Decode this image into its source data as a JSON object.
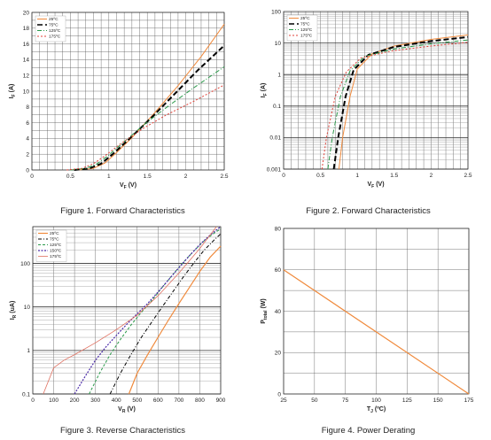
{
  "chart_data": [
    {
      "type": "line",
      "caption": "Figure 1. Forward Characteristics",
      "xlabel": "VF (V)",
      "xlabel_main": "V",
      "xlabel_sub": "F",
      "xlabel_unit": "(V)",
      "ylabel": "IF (A)",
      "ylabel_main": "I",
      "ylabel_sub": "F",
      "ylabel_unit": "(A)",
      "xscale": "linear",
      "yscale": "linear",
      "xlim": [
        0,
        2.5
      ],
      "ylim": [
        0,
        20
      ],
      "xticks": [
        0,
        0.5,
        1,
        1.5,
        2,
        2.5
      ],
      "xtick_labels": [
        "0",
        "0.5",
        "1",
        "1.5",
        "2",
        "2.5"
      ],
      "yticks": [
        0,
        2,
        4,
        6,
        8,
        10,
        12,
        14,
        16,
        18,
        20
      ],
      "ytick_labels": [
        "0",
        "2",
        "4",
        "6",
        "8",
        "10",
        "12",
        "14",
        "16",
        "18",
        "20"
      ],
      "grid": {
        "x_step": 0.1,
        "y_step": 1
      },
      "legend_position": "top-left",
      "series": [
        {
          "name": "25ºC",
          "color": "#f08a3c",
          "dash": "",
          "width": 1,
          "x": [
            0.6,
            0.8,
            0.95,
            1.1,
            1.3,
            1.6,
            1.9,
            2.2,
            2.5
          ],
          "y": [
            0,
            0.2,
            0.9,
            2.2,
            4.1,
            7.3,
            10.7,
            14.4,
            18.5
          ]
        },
        {
          "name": "75ºC",
          "color": "#000000",
          "dash": "6,3",
          "width": 2,
          "x": [
            0.55,
            0.75,
            0.9,
            1.05,
            1.25,
            1.55,
            1.85,
            2.15,
            2.5
          ],
          "y": [
            0,
            0.2,
            0.8,
            2.0,
            3.8,
            6.6,
            9.6,
            12.6,
            15.8
          ]
        },
        {
          "name": "125ºC",
          "color": "#2a9a4a",
          "dash": "5,2,1,2",
          "width": 1,
          "x": [
            0.5,
            0.7,
            0.85,
            1.0,
            1.2,
            1.5,
            1.8,
            2.1,
            2.5
          ],
          "y": [
            0,
            0.2,
            0.8,
            1.9,
            3.6,
            6.1,
            8.3,
            10.4,
            13.1
          ]
        },
        {
          "name": "175ºC",
          "color": "#e0433a",
          "dash": "2,2",
          "width": 1,
          "x": [
            0.45,
            0.65,
            0.8,
            0.95,
            1.15,
            1.45,
            1.75,
            2.1,
            2.5
          ],
          "y": [
            0,
            0.2,
            0.8,
            1.8,
            3.3,
            5.3,
            7.0,
            8.7,
            10.8
          ]
        }
      ]
    },
    {
      "type": "line",
      "caption": "Figure 2. Forward Characteristics",
      "xlabel": "VF (V)",
      "xlabel_main": "V",
      "xlabel_sub": "F",
      "xlabel_unit": "(V)",
      "ylabel": "IF (A)",
      "ylabel_main": "I",
      "ylabel_sub": "F",
      "ylabel_unit": "(A)",
      "xscale": "linear",
      "yscale": "log",
      "xlim": [
        0,
        2.5
      ],
      "ylim": [
        0.001,
        100
      ],
      "xticks": [
        0,
        0.5,
        1,
        1.5,
        2,
        2.5
      ],
      "xtick_labels": [
        "0",
        "0.5",
        "1",
        "1.5",
        "2",
        "2.5"
      ],
      "yticks": [
        0.001,
        0.01,
        0.1,
        1,
        10,
        100
      ],
      "ytick_labels": [
        "0.001",
        "0.01",
        "0.1",
        "1",
        "10",
        "100"
      ],
      "grid": {
        "x_step": 0.1,
        "y_minor": true
      },
      "legend_position": "top-left",
      "series": [
        {
          "name": "25ºC",
          "color": "#f08a3c",
          "dash": "",
          "width": 1,
          "x": [
            0.75,
            0.8,
            0.9,
            1.0,
            1.2,
            1.5,
            2.0,
            2.5
          ],
          "y": [
            0.001,
            0.01,
            0.2,
            1.5,
            4.5,
            8,
            13,
            18
          ]
        },
        {
          "name": "75ºC",
          "color": "#000000",
          "dash": "6,3",
          "width": 2,
          "x": [
            0.68,
            0.74,
            0.84,
            0.95,
            1.15,
            1.5,
            2.0,
            2.5
          ],
          "y": [
            0.001,
            0.01,
            0.2,
            1.4,
            4.2,
            7.5,
            11.5,
            15.5
          ]
        },
        {
          "name": "125ºC",
          "color": "#2a9a4a",
          "dash": "5,2,1,2",
          "width": 1,
          "x": [
            0.6,
            0.66,
            0.77,
            0.9,
            1.1,
            1.5,
            2.0,
            2.5
          ],
          "y": [
            0.001,
            0.01,
            0.2,
            1.3,
            3.8,
            6.5,
            9.5,
            12.5
          ]
        },
        {
          "name": "175ºC",
          "color": "#e0433a",
          "dash": "2,2",
          "width": 1,
          "x": [
            0.52,
            0.58,
            0.7,
            0.85,
            1.05,
            1.45,
            2.0,
            2.5
          ],
          "y": [
            0.001,
            0.01,
            0.2,
            1.2,
            3.4,
            5.5,
            8.0,
            10.5
          ]
        }
      ]
    },
    {
      "type": "line",
      "caption": "Figure 3. Reverse Characteristics",
      "xlabel": "VR (V)",
      "xlabel_main": "V",
      "xlabel_sub": "R",
      "xlabel_unit": "(V)",
      "ylabel": "IR (uA)",
      "ylabel_main": "I",
      "ylabel_sub": "R",
      "ylabel_unit": "(uA)",
      "xscale": "linear",
      "yscale": "log",
      "xlim": [
        0,
        900
      ],
      "ylim": [
        0.1,
        700
      ],
      "xticks": [
        0,
        100,
        200,
        300,
        400,
        500,
        600,
        700,
        800,
        900
      ],
      "xtick_labels": [
        "0",
        "100",
        "200",
        "300",
        "400",
        "500",
        "600",
        "700",
        "800",
        "900"
      ],
      "yticks": [
        0.1,
        1,
        10,
        100
      ],
      "ytick_labels": [
        "0.1",
        "1",
        "10",
        "100"
      ],
      "grid": {
        "x_step": 100,
        "y_minor": true
      },
      "legend_position": "top-left",
      "series": [
        {
          "name": "25ºC",
          "color": "#f08a3c",
          "dash": "",
          "width": 1.2,
          "x": [
            460,
            500,
            550,
            600,
            650,
            700,
            750,
            800,
            850,
            900
          ],
          "y": [
            0.1,
            0.3,
            0.8,
            2,
            5,
            12,
            28,
            65,
            140,
            250
          ]
        },
        {
          "name": "75ºC",
          "color": "#000000",
          "dash": "4,2,1,2",
          "width": 1,
          "x": [
            370,
            420,
            470,
            520,
            570,
            620,
            670,
            720,
            770,
            820,
            870,
            900
          ],
          "y": [
            0.1,
            0.3,
            0.8,
            2,
            4.5,
            10,
            22,
            48,
            100,
            200,
            350,
            480
          ]
        },
        {
          "name": "125ºC",
          "color": "#2a9a4a",
          "dash": "3,2",
          "width": 1,
          "x": [
            270,
            320,
            370,
            420,
            470,
            520,
            570,
            620,
            670,
            720,
            770,
            820,
            870,
            900
          ],
          "y": [
            0.1,
            0.3,
            0.8,
            1.8,
            3.8,
            7.5,
            14,
            28,
            55,
            105,
            190,
            330,
            500,
            620
          ]
        },
        {
          "name": "150ºC",
          "color": "#4a2aa8",
          "dash": "2,1.5",
          "width": 1.2,
          "x": [
            200,
            250,
            300,
            350,
            400,
            450,
            500,
            550,
            600,
            650,
            700,
            750,
            800,
            850,
            900
          ],
          "y": [
            0.1,
            0.25,
            0.6,
            1.2,
            2.2,
            4,
            7,
            12,
            22,
            42,
            80,
            150,
            270,
            450,
            700
          ]
        },
        {
          "name": "175ºC",
          "color": "#e07060",
          "dash": "",
          "width": 0.8,
          "x": [
            50,
            100,
            150,
            200,
            300,
            400,
            500,
            600,
            700,
            800,
            880
          ],
          "y": [
            0.1,
            0.4,
            0.6,
            0.8,
            1.5,
            3,
            6.5,
            18,
            60,
            220,
            700
          ]
        }
      ]
    },
    {
      "type": "line",
      "caption": "Figure 4. Power Derating",
      "xlabel": "TJ (ºC)",
      "xlabel_main": "T",
      "xlabel_sub": "J",
      "xlabel_unit": "(ºC)",
      "ylabel": "Ptotal (W)",
      "ylabel_main": "P",
      "ylabel_sub": "total",
      "ylabel_unit": "(W)",
      "xscale": "linear",
      "yscale": "linear",
      "xlim": [
        25,
        175
      ],
      "ylim": [
        0,
        80
      ],
      "xticks": [
        25,
        50,
        75,
        100,
        125,
        150,
        175
      ],
      "xtick_labels": [
        "25",
        "50",
        "75",
        "100",
        "125",
        "150",
        "175"
      ],
      "yticks": [
        0,
        20,
        40,
        60,
        80
      ],
      "ytick_labels": [
        "0",
        "20",
        "40",
        "60",
        "80"
      ],
      "grid": {
        "x_step": 25,
        "y_step": 10
      },
      "legend_position": "none",
      "series": [
        {
          "color": "#f08a3c",
          "dash": "",
          "width": 1.2,
          "x": [
            25,
            175
          ],
          "y": [
            60,
            0
          ]
        }
      ]
    }
  ]
}
